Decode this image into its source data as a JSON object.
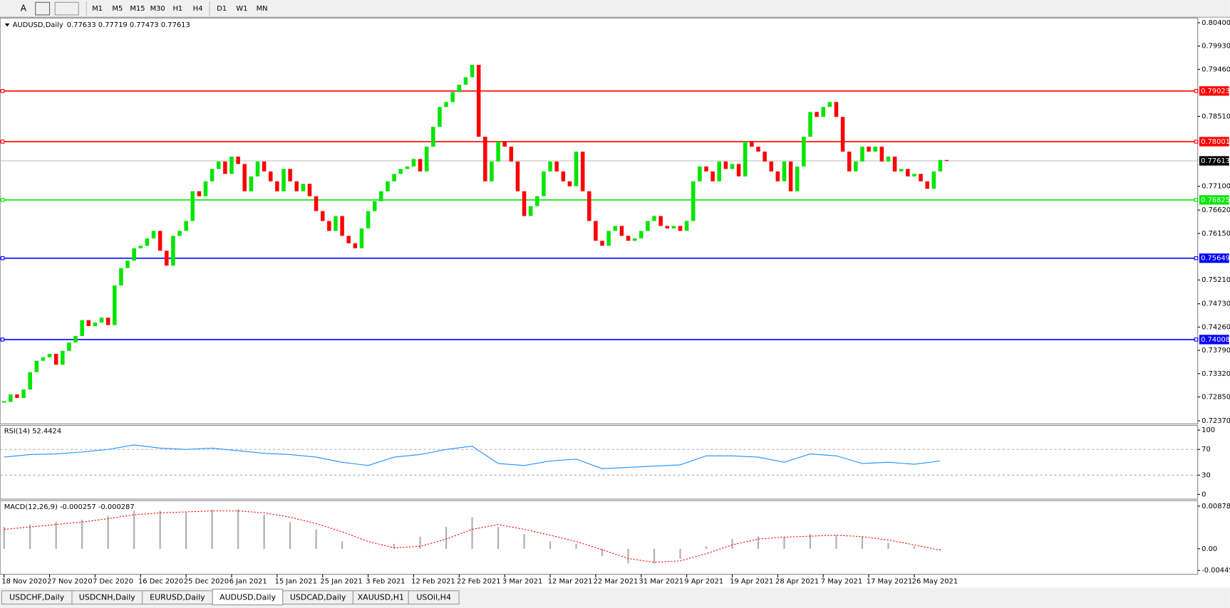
{
  "toolbar": {
    "tools": [
      "A"
    ],
    "timeframes": [
      "M1",
      "M5",
      "M15",
      "M30",
      "H1",
      "H4",
      "D1",
      "W1",
      "MN"
    ]
  },
  "chart_data": [
    {
      "type": "candlestick",
      "title": "AUDUSD,Daily",
      "ohlc_text": "0.77633 0.77719 0.77473 0.77613",
      "up_color": "#00e600",
      "down_color": "#ff0000",
      "values": [
        0.7275,
        0.729,
        0.7283,
        0.73,
        0.7335,
        0.7358,
        0.7365,
        0.7372,
        0.735,
        0.7378,
        0.7395,
        0.7408,
        0.744,
        0.7428,
        0.7435,
        0.7445,
        0.743,
        0.751,
        0.7545,
        0.756,
        0.7585,
        0.759,
        0.7605,
        0.762,
        0.758,
        0.755,
        0.761,
        0.762,
        0.764,
        0.77,
        0.769,
        0.772,
        0.7745,
        0.776,
        0.7735,
        0.777,
        0.7755,
        0.77,
        0.773,
        0.776,
        0.774,
        0.772,
        0.77,
        0.7745,
        0.772,
        0.77,
        0.7715,
        0.769,
        0.766,
        0.764,
        0.762,
        0.765,
        0.761,
        0.7595,
        0.7585,
        0.7625,
        0.766,
        0.768,
        0.77,
        0.772,
        0.7735,
        0.7745,
        0.775,
        0.7765,
        0.774,
        0.779,
        0.783,
        0.787,
        0.788,
        0.79,
        0.7915,
        0.793,
        0.7955,
        0.781,
        0.772,
        0.776,
        0.78,
        0.779,
        0.776,
        0.77,
        0.765,
        0.767,
        0.769,
        0.774,
        0.776,
        0.774,
        0.772,
        0.771,
        0.778,
        0.77,
        0.764,
        0.76,
        0.759,
        0.762,
        0.763,
        0.761,
        0.76,
        0.7605,
        0.762,
        0.764,
        0.765,
        0.763,
        0.7625,
        0.763,
        0.762,
        0.764,
        0.772,
        0.775,
        0.774,
        0.772,
        0.776,
        0.7745,
        0.7755,
        0.773,
        0.78,
        0.779,
        0.778,
        0.776,
        0.774,
        0.772,
        0.776,
        0.77,
        0.775,
        0.781,
        0.786,
        0.785,
        0.787,
        0.788,
        0.785,
        0.778,
        0.774,
        0.776,
        0.779,
        0.778,
        0.779,
        0.776,
        0.777,
        0.774,
        0.7745,
        0.773,
        0.7735,
        0.772,
        0.7705,
        0.774,
        0.7763,
        0.7761
      ],
      "ylim": [
        0.7237,
        0.804
      ],
      "yticks": [
        {
          "value": 0.804,
          "label": "0.80400"
        },
        {
          "value": 0.7993,
          "label": "0.79930"
        },
        {
          "value": 0.7946,
          "label": "0.79460"
        },
        {
          "value": 0.7851,
          "label": "0.78510"
        },
        {
          "value": 0.771,
          "label": "0.77100"
        },
        {
          "value": 0.7662,
          "label": "0.76620"
        },
        {
          "value": 0.7615,
          "label": "0.76150"
        },
        {
          "value": 0.7521,
          "label": "0.75210"
        },
        {
          "value": 0.7473,
          "label": "0.74730"
        },
        {
          "value": 0.7426,
          "label": "0.74260"
        },
        {
          "value": 0.7379,
          "label": "0.73790"
        },
        {
          "value": 0.7332,
          "label": "0.73320"
        },
        {
          "value": 0.7285,
          "label": "0.72850"
        },
        {
          "value": 0.7237,
          "label": "0.72370"
        }
      ],
      "xticks": [
        {
          "value": 0,
          "label": "18 Nov 2020"
        },
        {
          "value": 7,
          "label": "27 Nov 2020"
        },
        {
          "value": 14,
          "label": "7 Dec 2020"
        },
        {
          "value": 21,
          "label": "16 Dec 2020"
        },
        {
          "value": 28,
          "label": "25 Dec 2020"
        },
        {
          "value": 35,
          "label": "6 Jan 2021"
        },
        {
          "value": 42,
          "label": "15 Jan 2021"
        },
        {
          "value": 49,
          "label": "25 Jan 2021"
        },
        {
          "value": 56,
          "label": "3 Feb 2021"
        },
        {
          "value": 63,
          "label": "12 Feb 2021"
        },
        {
          "value": 70,
          "label": "22 Feb 2021"
        },
        {
          "value": 77,
          "label": "3 Mar 2021"
        },
        {
          "value": 84,
          "label": "12 Mar 2021"
        },
        {
          "value": 91,
          "label": "22 Mar 2021"
        },
        {
          "value": 98,
          "label": "31 Mar 2021"
        },
        {
          "value": 105,
          "label": "9 Apr 2021"
        },
        {
          "value": 112,
          "label": "19 Apr 2021"
        },
        {
          "value": 119,
          "label": "28 Apr 2021"
        },
        {
          "value": 126,
          "label": "7 May 2021"
        },
        {
          "value": 133,
          "label": "17 May 2021"
        },
        {
          "value": 140,
          "label": "26 May 2021"
        }
      ],
      "levels": [
        {
          "value": 0.79023,
          "color": "#ff0000"
        },
        {
          "value": 0.78001,
          "color": "#ff0000"
        },
        {
          "value": 0.76825,
          "color": "#00e600"
        },
        {
          "value": 0.75649,
          "color": "#0000ff"
        },
        {
          "value": 0.74008,
          "color": "#0000ff"
        }
      ],
      "last_price": 0.77613
    },
    {
      "type": "line",
      "title": "RSI(14) 52.4424",
      "color": "#1e90ff",
      "x": [
        0,
        4,
        8,
        12,
        16,
        20,
        24,
        28,
        32,
        36,
        40,
        44,
        48,
        52,
        56,
        60,
        64,
        68,
        72,
        76,
        80,
        84,
        88,
        92,
        96,
        100,
        104,
        108,
        112,
        116,
        120,
        124,
        128,
        132,
        136,
        140,
        144
      ],
      "values": [
        58,
        62,
        63,
        66,
        70,
        77,
        72,
        70,
        72,
        68,
        64,
        62,
        58,
        50,
        45,
        58,
        62,
        70,
        75,
        48,
        45,
        52,
        55,
        40,
        42,
        44,
        46,
        60,
        60,
        58,
        50,
        63,
        60,
        48,
        50,
        47,
        52
      ],
      "ylim": [
        0,
        100
      ],
      "yticks": [
        0,
        30,
        70,
        100
      ],
      "levels": [
        30,
        70
      ]
    },
    {
      "type": "macd",
      "title": "MACD(12,26,9) -0.000257 -0.000287",
      "x": [
        0,
        4,
        8,
        12,
        16,
        20,
        24,
        28,
        32,
        36,
        40,
        44,
        48,
        52,
        56,
        60,
        64,
        68,
        72,
        76,
        80,
        84,
        88,
        92,
        96,
        100,
        104,
        108,
        112,
        116,
        120,
        124,
        128,
        132,
        136,
        140,
        144
      ],
      "series": [
        {
          "color": "#b0b0b0",
          "values": [
            0.0045,
            0.005,
            0.0055,
            0.006,
            0.0068,
            0.0078,
            0.0078,
            0.0075,
            0.008,
            0.0082,
            0.007,
            0.0055,
            0.004,
            0.0015,
            0.0,
            0.001,
            0.0025,
            0.0045,
            0.0065,
            0.0045,
            0.003,
            0.0015,
            0.001,
            -0.0015,
            -0.003,
            -0.003,
            -0.002,
            0.0005,
            0.002,
            0.0025,
            0.0025,
            0.003,
            0.0028,
            0.0025,
            0.0012,
            0.0005,
            -0.0003
          ]
        },
        {
          "color": "#ff0000",
          "values": [
            0.004,
            0.0045,
            0.005,
            0.0055,
            0.0062,
            0.007,
            0.0074,
            0.0076,
            0.0078,
            0.0078,
            0.0074,
            0.0065,
            0.0052,
            0.0035,
            0.0015,
            0.0002,
            0.0005,
            0.002,
            0.004,
            0.005,
            0.004,
            0.0028,
            0.0015,
            -0.0002,
            -0.002,
            -0.0028,
            -0.0025,
            -0.001,
            0.0008,
            0.002,
            0.0024,
            0.0026,
            0.0028,
            0.0025,
            0.0018,
            0.0008,
            -0.0003
          ]
        }
      ],
      "ylim": [
        -0.004451,
        0.008782
      ],
      "yticks": [
        0.008782,
        {
          "value": 0,
          "label": "0.00"
        },
        -0.004451
      ]
    }
  ],
  "tabs": {
    "items": [
      "USDCHF,Daily",
      "USDCNH,Daily",
      "EURUSD,Daily",
      "AUDUSD,Daily",
      "USDCAD,Daily",
      "XAUUSD,H1",
      "USOil,H4"
    ],
    "active": 3
  }
}
